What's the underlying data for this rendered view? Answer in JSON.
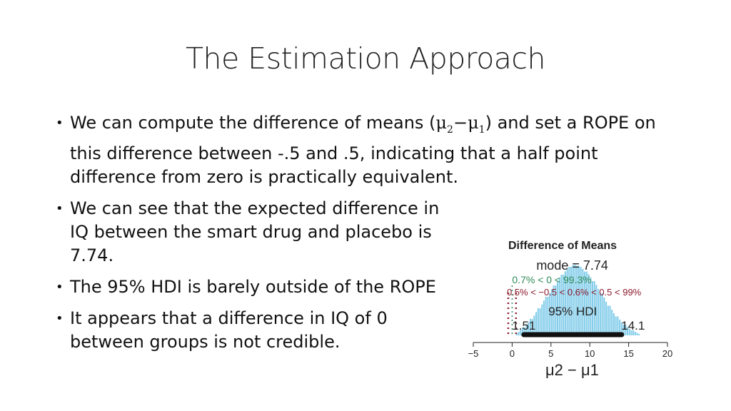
{
  "slide": {
    "title": "The Estimation Approach",
    "bullets": [
      {
        "before": "We can compute the difference of means (",
        "math_mu2": "μ",
        "math_sub2": "2",
        "math_minus": "−",
        "math_mu1": "μ",
        "math_sub1": "1",
        "after": ") and set a ROPE on this difference between -.5 and .5, indicating that a half point difference from zero is practically equivalent."
      },
      {
        "text": "We can see that the expected difference in IQ between the smart drug and placebo is 7.74."
      },
      {
        "text": "The 95% HDI is barely outside of the ROPE"
      },
      {
        "text": "It appears that a difference in IQ of 0 between groups is not credible."
      }
    ]
  },
  "chart_data": {
    "type": "bar",
    "title": "Difference of Means",
    "xlabel": "μ2 − μ1",
    "xlim": [
      -5,
      20
    ],
    "xticks": [
      "−5",
      "0",
      "5",
      "10",
      "15",
      "20"
    ],
    "histogram_color": "#87CEEB",
    "bins": [
      {
        "x": 1.0,
        "density": 0.06
      },
      {
        "x": 2.0,
        "density": 0.16
      },
      {
        "x": 3.0,
        "density": 0.3
      },
      {
        "x": 4.0,
        "density": 0.46
      },
      {
        "x": 5.0,
        "density": 0.62
      },
      {
        "x": 6.0,
        "density": 0.78
      },
      {
        "x": 7.0,
        "density": 0.92
      },
      {
        "x": 8.0,
        "density": 1.0
      },
      {
        "x": 9.0,
        "density": 0.95
      },
      {
        "x": 10.0,
        "density": 0.84
      },
      {
        "x": 11.0,
        "density": 0.68
      },
      {
        "x": 12.0,
        "density": 0.5
      },
      {
        "x": 13.0,
        "density": 0.33
      },
      {
        "x": 14.0,
        "density": 0.2
      },
      {
        "x": 15.0,
        "density": 0.1
      },
      {
        "x": 16.0,
        "density": 0.04
      }
    ],
    "mode": 7.74,
    "mode_label": "mode = 7.74",
    "compare_text": "0.7% < 0 < 99.3%",
    "compare_color": "#2E8B57",
    "rope": [
      -0.5,
      0.5
    ],
    "rope_text": "0.5% < −0.5 < 0.6% < 0.5 < 99%",
    "rope_color": "#8B1A2B",
    "hdi": [
      1.51,
      14.1
    ],
    "hdi_label": "95% HDI",
    "hdi_low_label": "1.51",
    "hdi_high_label": "14.1"
  }
}
